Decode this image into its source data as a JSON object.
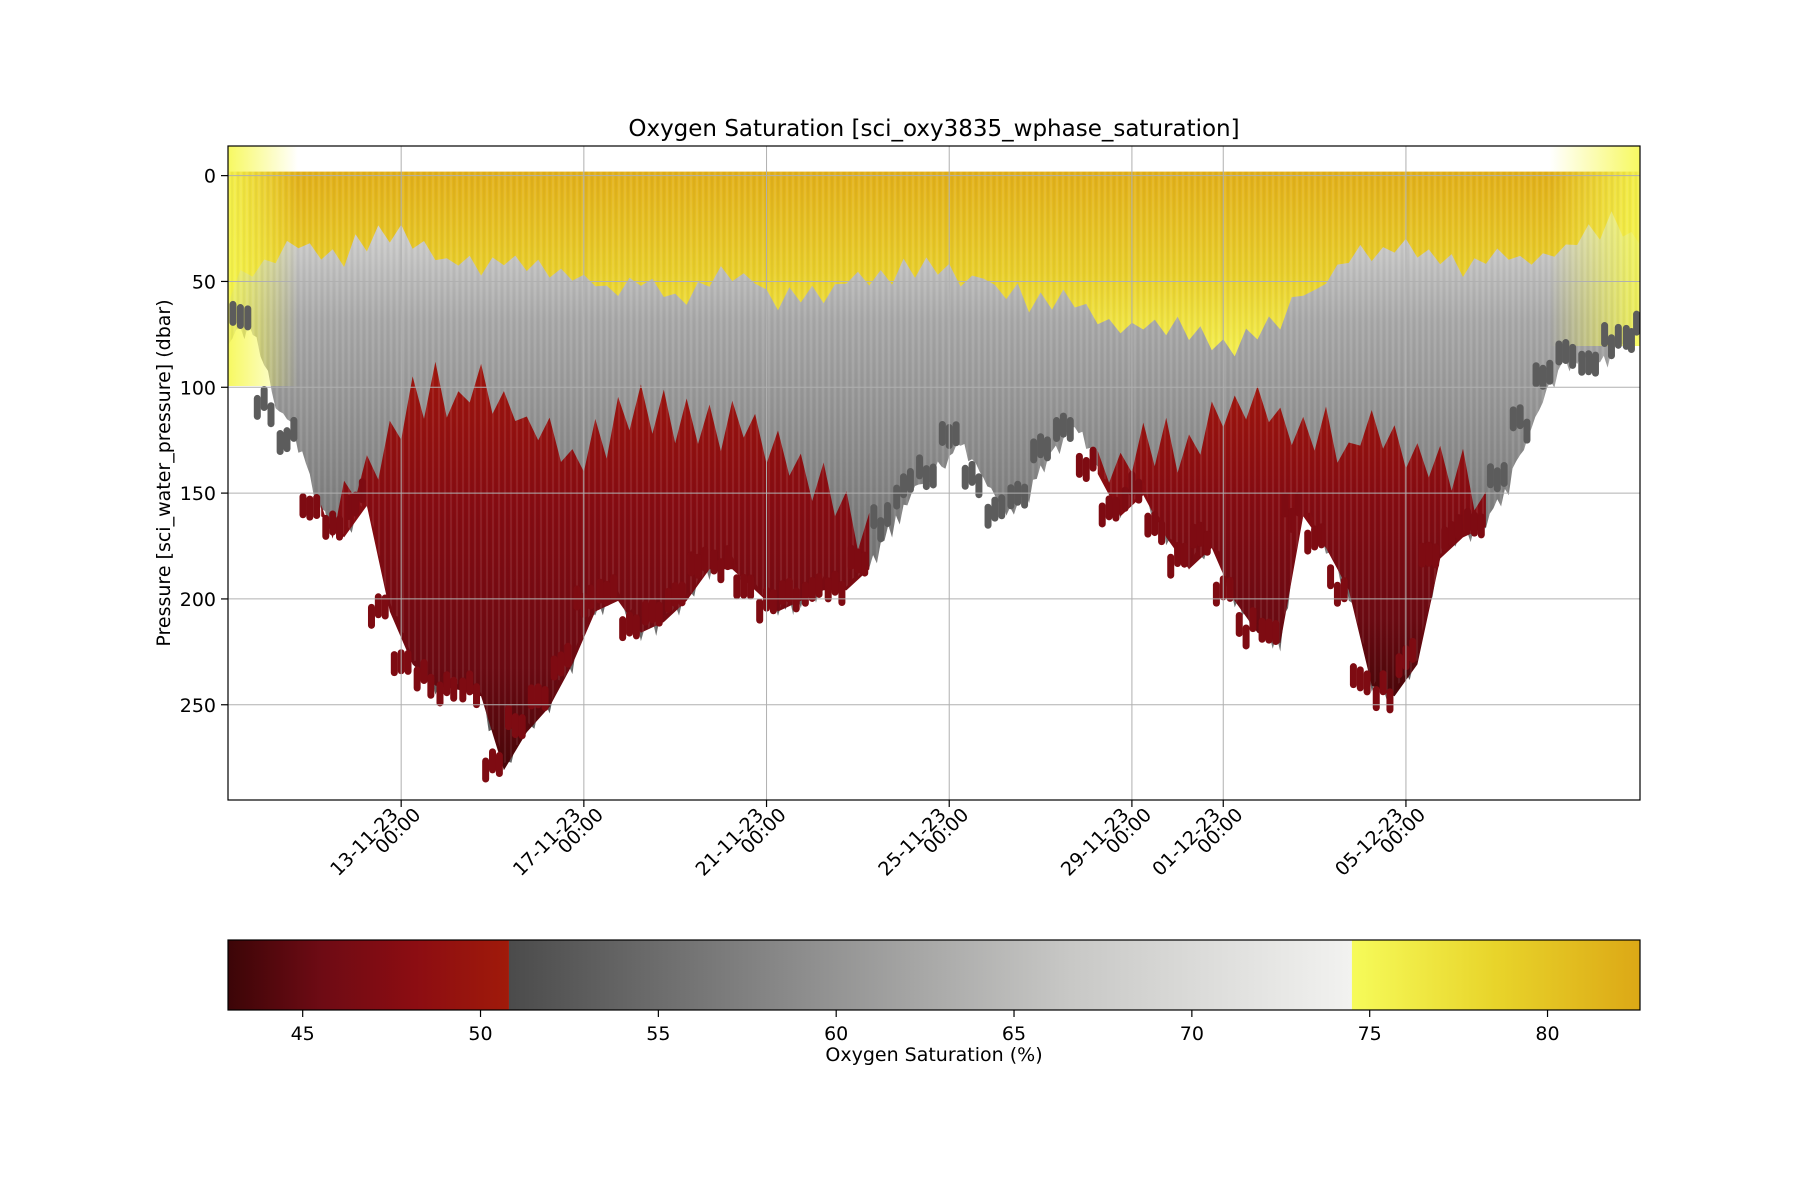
{
  "chart_data": {
    "type": "scatter",
    "title": "Oxygen Saturation [sci_oxy3835_wphase_saturation]",
    "ylabel": "Pressure [sci_water_pressure] (dbar)",
    "xlabel": "",
    "x_range": [
      "2023-11-09T05:00",
      "2023-12-10T03:00"
    ],
    "ylim": [
      295,
      -14
    ],
    "y_inverted": true,
    "grid": true,
    "x_ticks": [
      {
        "date": "2023-11-13T00:00",
        "line1": "13-11-23",
        "line2": "00:00"
      },
      {
        "date": "2023-11-17T00:00",
        "line1": "17-11-23",
        "line2": "00:00"
      },
      {
        "date": "2023-11-21T00:00",
        "line1": "21-11-23",
        "line2": "00:00"
      },
      {
        "date": "2023-11-25T00:00",
        "line1": "25-11-23",
        "line2": "00:00"
      },
      {
        "date": "2023-11-29T00:00",
        "line1": "29-11-23",
        "line2": "00:00"
      },
      {
        "date": "2023-12-01T00:00",
        "line1": "01-12-23",
        "line2": "00:00"
      },
      {
        "date": "2023-12-05T00:00",
        "line1": "05-12-23",
        "line2": "00:00"
      }
    ],
    "y_ticks": [
      0,
      50,
      100,
      150,
      200,
      250
    ],
    "colorbar": {
      "label": "Oxygen Saturation (%)",
      "range": [
        42.9,
        82.6
      ],
      "ticks": [
        45,
        50,
        55,
        60,
        65,
        70,
        75,
        80
      ],
      "orientation": "horizontal",
      "segments": [
        {
          "from": 42.9,
          "to": 50.8,
          "colors": [
            "#3c0507",
            "#6e0b14",
            "#8c0d12",
            "#a01a0a"
          ]
        },
        {
          "from": 50.8,
          "to": 74.5,
          "colors": [
            "#4b4b4b",
            "#8a8a8a",
            "#c8c8c6",
            "#f2f2f0"
          ]
        },
        {
          "from": 74.5,
          "to": 82.6,
          "colors": [
            "#f6fb5a",
            "#e8d42a",
            "#dca816"
          ]
        }
      ]
    },
    "depth_profile_dbar": {
      "times": [
        "2023-11-09T05:00",
        "2023-11-09T18:00",
        "2023-11-10T06:00",
        "2023-11-10T18:00",
        "2023-11-11T06:00",
        "2023-11-11T18:00",
        "2023-11-12T06:00",
        "2023-11-12T18:00",
        "2023-11-13T06:00",
        "2023-11-13T18:00",
        "2023-11-14T06:00",
        "2023-11-14T18:00",
        "2023-11-15T06:00",
        "2023-11-15T18:00",
        "2023-11-16T06:00",
        "2023-11-16T18:00",
        "2023-11-17T06:00",
        "2023-11-17T18:00",
        "2023-11-18T06:00",
        "2023-11-18T18:00",
        "2023-11-19T06:00",
        "2023-11-19T18:00",
        "2023-11-20T06:00",
        "2023-11-20T18:00",
        "2023-11-21T06:00",
        "2023-11-21T18:00",
        "2023-11-22T06:00",
        "2023-11-22T18:00",
        "2023-11-23T06:00",
        "2023-11-23T18:00",
        "2023-11-24T06:00",
        "2023-11-24T18:00",
        "2023-11-25T06:00",
        "2023-11-25T18:00",
        "2023-11-26T06:00",
        "2023-11-26T18:00",
        "2023-11-27T06:00",
        "2023-11-27T18:00",
        "2023-11-28T06:00",
        "2023-11-28T18:00",
        "2023-11-29T06:00",
        "2023-11-29T18:00",
        "2023-11-30T06:00",
        "2023-11-30T18:00",
        "2023-12-01T06:00",
        "2023-12-01T18:00",
        "2023-12-02T06:00",
        "2023-12-02T18:00",
        "2023-12-03T06:00",
        "2023-12-03T18:00",
        "2023-12-04T06:00",
        "2023-12-04T18:00",
        "2023-12-05T06:00",
        "2023-12-05T18:00",
        "2023-12-06T06:00",
        "2023-12-06T18:00",
        "2023-12-07T06:00",
        "2023-12-07T18:00",
        "2023-12-08T06:00",
        "2023-12-08T18:00",
        "2023-12-09T06:00",
        "2023-12-09T18:00",
        "2023-12-10T03:00"
      ],
      "bottom": [
        80,
        70,
        110,
        125,
        160,
        170,
        155,
        205,
        230,
        240,
        242,
        245,
        280,
        262,
        250,
        230,
        205,
        200,
        215,
        210,
        200,
        185,
        185,
        195,
        205,
        200,
        195,
        195,
        185,
        165,
        150,
        140,
        125,
        145,
        160,
        150,
        130,
        120,
        140,
        160,
        150,
        170,
        185,
        175,
        200,
        215,
        220,
        160,
        175,
        195,
        240,
        245,
        230,
        180,
        170,
        165,
        145,
        120,
        95,
        85,
        90,
        80,
        75
      ],
      "hypoxic_top": [
        null,
        null,
        null,
        null,
        160,
        145,
        130,
        115,
        100,
        95,
        95,
        90,
        95,
        110,
        115,
        125,
        120,
        110,
        100,
        105,
        110,
        115,
        105,
        115,
        125,
        130,
        140,
        150,
        165,
        null,
        null,
        null,
        null,
        null,
        null,
        null,
        null,
        null,
        130,
        125,
        120,
        120,
        125,
        110,
        100,
        95,
        105,
        110,
        115,
        120,
        105,
        115,
        120,
        130,
        135,
        150,
        null,
        null,
        null,
        null,
        null,
        null,
        null
      ],
      "surface_mixed_bottom": [
        65,
        45,
        40,
        35,
        38,
        40,
        35,
        30,
        35,
        40,
        45,
        45,
        40,
        42,
        48,
        50,
        55,
        55,
        55,
        58,
        60,
        52,
        50,
        55,
        60,
        60,
        60,
        55,
        50,
        48,
        45,
        45,
        50,
        52,
        60,
        62,
        62,
        60,
        70,
        72,
        75,
        75,
        78,
        80,
        82,
        78,
        70,
        60,
        55,
        45,
        40,
        38,
        40,
        45,
        45,
        42,
        40,
        45,
        40,
        32,
        28,
        25,
        35
      ]
    }
  }
}
